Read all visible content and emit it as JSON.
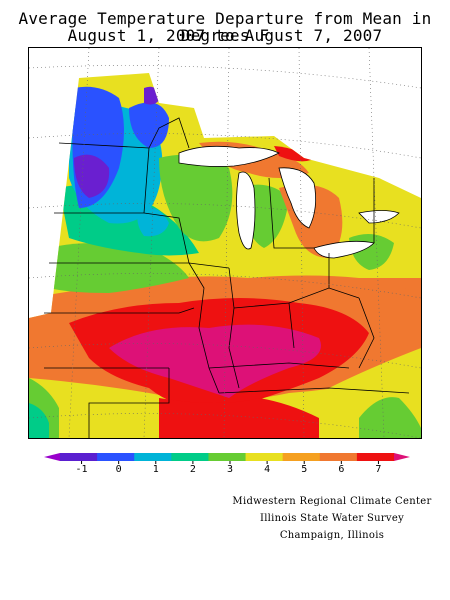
{
  "title_line1": "Average Temperature Departure from Mean in Degrees F",
  "title_line2": "August 1, 2007 to August 7, 2007",
  "legend": {
    "labels": [
      "-1",
      "0",
      "1",
      "2",
      "3",
      "4",
      "5",
      "6",
      "7"
    ],
    "colors": [
      "#9900cc",
      "#5a1fd0",
      "#2a52ff",
      "#00b4d8",
      "#00cc88",
      "#66cc33",
      "#e8e020",
      "#f5a020",
      "#f07830",
      "#ee1111",
      "#dd1177"
    ]
  },
  "map_colors": {
    "background": "#e8e020",
    "red": "#ee1111",
    "magenta": "#dd1177",
    "orange": "#f07830",
    "yellow": "#e8e020",
    "green": "#66cc33",
    "teal": "#00cc88",
    "cyan": "#00b4d8",
    "blue": "#2a52ff",
    "purple": "#6a1fd0"
  },
  "credits": [
    "Midwestern Regional Climate Center",
    "Illinois State Water Survey",
    "Champaign, Illinois"
  ]
}
